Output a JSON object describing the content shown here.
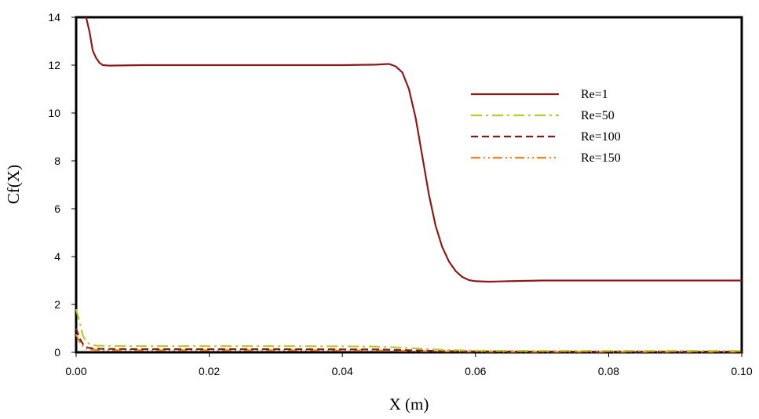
{
  "chart_data": {
    "type": "line",
    "xlabel": "X (m)",
    "ylabel": "Cf(X)",
    "xlim": [
      0,
      0.1
    ],
    "ylim": [
      0,
      14
    ],
    "x_ticks": [
      "0.00",
      "0.02",
      "0.04",
      "0.06",
      "0.08",
      "0.10"
    ],
    "y_ticks": [
      "0",
      "2",
      "4",
      "6",
      "8",
      "10",
      "12",
      "14"
    ],
    "grid": false,
    "legend_position": "upper-right",
    "series": [
      {
        "name": "Re=1",
        "color": "#8B1A1A",
        "dash": "solid",
        "x": [
          0.0015,
          0.002,
          0.0025,
          0.003,
          0.0035,
          0.004,
          0.005,
          0.01,
          0.02,
          0.03,
          0.04,
          0.045,
          0.047,
          0.048,
          0.049,
          0.05,
          0.051,
          0.052,
          0.053,
          0.054,
          0.055,
          0.056,
          0.057,
          0.058,
          0.059,
          0.06,
          0.062,
          0.065,
          0.07,
          0.08,
          0.09,
          0.1
        ],
        "y": [
          14.0,
          13.4,
          12.6,
          12.3,
          12.1,
          12.0,
          11.98,
          12.0,
          12.0,
          12.0,
          12.0,
          12.02,
          12.05,
          11.95,
          11.7,
          11.0,
          9.8,
          8.2,
          6.6,
          5.3,
          4.4,
          3.8,
          3.4,
          3.15,
          3.02,
          2.97,
          2.95,
          2.97,
          3.0,
          3.0,
          3.0,
          3.0
        ]
      },
      {
        "name": "Re=50",
        "color": "#BFC72E",
        "dash": "dash-dot",
        "x": [
          0.0,
          0.0005,
          0.001,
          0.0015,
          0.002,
          0.003,
          0.005,
          0.01,
          0.02,
          0.03,
          0.04,
          0.045,
          0.05,
          0.055,
          0.06,
          0.07,
          0.08,
          0.09,
          0.1
        ],
        "y": [
          1.8,
          1.3,
          0.7,
          0.45,
          0.35,
          0.28,
          0.27,
          0.26,
          0.26,
          0.26,
          0.25,
          0.24,
          0.18,
          0.1,
          0.07,
          0.06,
          0.06,
          0.06,
          0.06
        ]
      },
      {
        "name": "Re=100",
        "color": "#7A1F1F",
        "dash": "dashed",
        "x": [
          0.0,
          0.0005,
          0.001,
          0.0015,
          0.002,
          0.003,
          0.005,
          0.01,
          0.02,
          0.03,
          0.04,
          0.045,
          0.05,
          0.055,
          0.06,
          0.07,
          0.08,
          0.09,
          0.1
        ],
        "y": [
          1.0,
          0.6,
          0.35,
          0.22,
          0.18,
          0.15,
          0.14,
          0.13,
          0.13,
          0.13,
          0.12,
          0.12,
          0.09,
          0.05,
          0.04,
          0.03,
          0.03,
          0.03,
          0.03
        ]
      },
      {
        "name": "Re=150",
        "color": "#F58220",
        "dash": "dash-dot-dot",
        "x": [
          0.0,
          0.0005,
          0.001,
          0.0015,
          0.002,
          0.003,
          0.005,
          0.01,
          0.02,
          0.03,
          0.04,
          0.045,
          0.05,
          0.055,
          0.06,
          0.07,
          0.08,
          0.09,
          0.1
        ],
        "y": [
          0.75,
          0.45,
          0.25,
          0.15,
          0.12,
          0.1,
          0.09,
          0.09,
          0.09,
          0.09,
          0.08,
          0.08,
          0.06,
          0.04,
          0.03,
          0.02,
          0.02,
          0.02,
          0.02
        ]
      }
    ]
  }
}
